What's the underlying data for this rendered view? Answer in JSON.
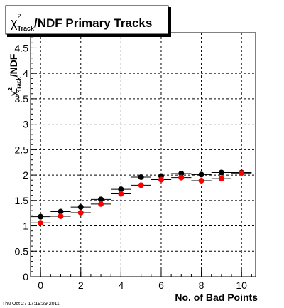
{
  "chart_data": {
    "type": "scatter",
    "title_symbol": "χ",
    "title_superscript": "2",
    "title_subscript": "Track",
    "title_rest": "/NDF Primary Tracks",
    "ylabel_symbol": "χ",
    "ylabel_superscript": "2",
    "ylabel_subscript": "Track",
    "ylabel_rest": "/NDF",
    "xlabel": "No. of Bad Points",
    "xlim": [
      -0.5,
      10.7
    ],
    "ylim": [
      0,
      4.8
    ],
    "x_ticks": [
      "0",
      "2",
      "4",
      "6",
      "8",
      "10"
    ],
    "y_ticks": [
      "0",
      "0.5",
      "1",
      "1.5",
      "2",
      "2.5",
      "3",
      "3.5",
      "4",
      "4.5"
    ],
    "grid": true,
    "x": [
      0,
      1,
      2,
      3,
      4,
      5,
      6,
      7,
      8,
      9,
      10
    ],
    "series": [
      {
        "color": "#000000",
        "values": [
          1.18,
          1.28,
          1.37,
          1.52,
          1.72,
          1.96,
          1.98,
          2.03,
          2.01,
          2.05,
          2.05
        ]
      },
      {
        "color": "#ff0000",
        "values": [
          1.06,
          1.19,
          1.26,
          1.43,
          1.63,
          1.8,
          1.91,
          1.95,
          1.89,
          1.93,
          2.04
        ]
      }
    ]
  },
  "footer": {
    "timestamp": "Thu Oct 27 17:19:29 2011"
  }
}
